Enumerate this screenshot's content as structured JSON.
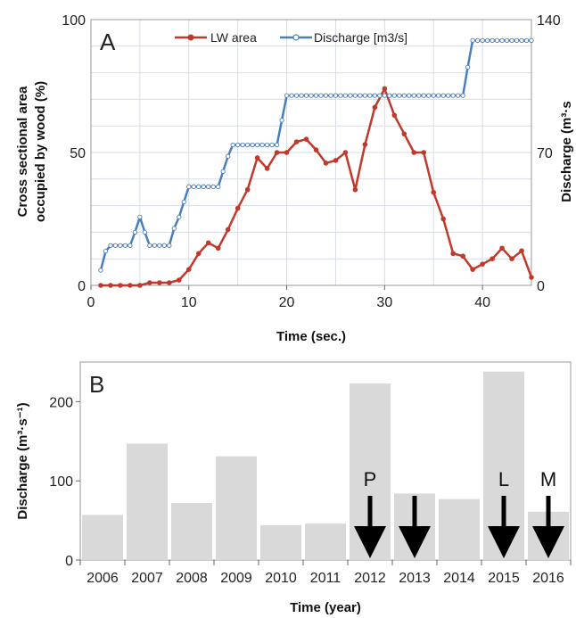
{
  "chart_data": [
    {
      "panel_label": "A",
      "type": "line",
      "xlabel": "Time (sec.)",
      "ylabel_lines": [
        "Cross sectional area",
        "occupied by wood (%)"
      ],
      "y2label": "Discharge (m³·s",
      "xlim": [
        0,
        45
      ],
      "ylim": [
        0,
        100
      ],
      "y2lim": [
        0,
        140
      ],
      "xticks": [
        0,
        10,
        20,
        30,
        40
      ],
      "yticks": [
        0,
        50,
        100
      ],
      "y2ticks": [
        0,
        70,
        140
      ],
      "grid": true,
      "legend_position": "top",
      "colors": {
        "lw_area": "#c0392b",
        "discharge": "#4a7ebb",
        "grid": "#d6dce6"
      },
      "series": [
        {
          "name": "LW area",
          "axis": "left",
          "x": [
            1,
            2,
            3,
            4,
            5,
            6,
            7,
            8,
            9,
            10,
            11,
            12,
            13,
            14,
            15,
            16,
            17,
            18,
            19,
            20,
            21,
            22,
            23,
            24,
            25,
            26,
            27,
            28,
            29,
            30,
            31,
            32,
            33,
            34,
            35,
            36,
            37,
            38,
            39,
            40,
            41,
            42,
            43,
            44,
            45
          ],
          "y": [
            0,
            0,
            0,
            0,
            0,
            1,
            1,
            1,
            2,
            6,
            12,
            16,
            14,
            21,
            29,
            36,
            48,
            44,
            50,
            50,
            54,
            55,
            51,
            46,
            47,
            50,
            36,
            53,
            67,
            74,
            64,
            57,
            50,
            50,
            35,
            25,
            12,
            11,
            6,
            8,
            10,
            14,
            10,
            13,
            3
          ]
        },
        {
          "name": "Discharge [m3/s]",
          "axis": "right",
          "x": [
            1,
            1.5,
            2,
            2.5,
            3,
            3.5,
            4,
            4.5,
            5,
            5.5,
            6,
            6.5,
            7,
            7.5,
            8,
            8.5,
            9,
            9.5,
            10,
            10.5,
            11,
            11.5,
            12,
            12.5,
            13,
            13.5,
            14,
            14.5,
            15,
            15.5,
            16,
            16.5,
            17,
            17.5,
            18,
            18.5,
            19,
            19.5,
            20,
            20.5,
            21,
            21.5,
            22,
            22.5,
            23,
            23.5,
            24,
            24.5,
            25,
            25.5,
            26,
            26.5,
            27,
            27.5,
            28,
            28.5,
            29,
            29.5,
            30,
            30.5,
            31,
            31.5,
            32,
            32.5,
            33,
            33.5,
            34,
            34.5,
            35,
            35.5,
            36,
            36.5,
            37,
            37.5,
            38,
            38.5,
            39,
            39.5,
            40,
            40.5,
            41,
            41.5,
            42,
            42.5,
            43,
            43.5,
            44,
            44.5,
            45
          ],
          "y": [
            8,
            18,
            21,
            21,
            21,
            21,
            21,
            28,
            36,
            28,
            21,
            21,
            21,
            21,
            21,
            30,
            36,
            44,
            52,
            52,
            52,
            52,
            52,
            52,
            52,
            60,
            68,
            74,
            74,
            74,
            74,
            74,
            74,
            74,
            74,
            74,
            74,
            87,
            100,
            100,
            100,
            100,
            100,
            100,
            100,
            100,
            100,
            100,
            100,
            100,
            100,
            100,
            100,
            100,
            100,
            100,
            100,
            100,
            100,
            100,
            100,
            100,
            100,
            100,
            100,
            100,
            100,
            100,
            100,
            100,
            100,
            100,
            100,
            100,
            100,
            115,
            129,
            129,
            129,
            129,
            129,
            129,
            129,
            129,
            129,
            129,
            129,
            129,
            129
          ]
        }
      ]
    },
    {
      "panel_label": "B",
      "type": "bar",
      "xlabel": "Time (year)",
      "ylabel": "Discharge (m³·s⁻¹)",
      "ylim": [
        0,
        250
      ],
      "yticks": [
        0,
        100,
        200
      ],
      "grid": false,
      "colors": {
        "bar": "#d9d9d9",
        "arrow": "#000000"
      },
      "categories": [
        "2006",
        "2007",
        "2008",
        "2009",
        "2010",
        "2011",
        "2012",
        "2013",
        "2014",
        "2015",
        "2016"
      ],
      "values": [
        57,
        147,
        72,
        131,
        44,
        46,
        223,
        84,
        77,
        238,
        61
      ],
      "annotations": [
        {
          "year": "2012",
          "label": "P"
        },
        {
          "year": "2013",
          "label": ""
        },
        {
          "year": "2015",
          "label": "L"
        },
        {
          "year": "2016",
          "label": "M"
        }
      ]
    }
  ]
}
